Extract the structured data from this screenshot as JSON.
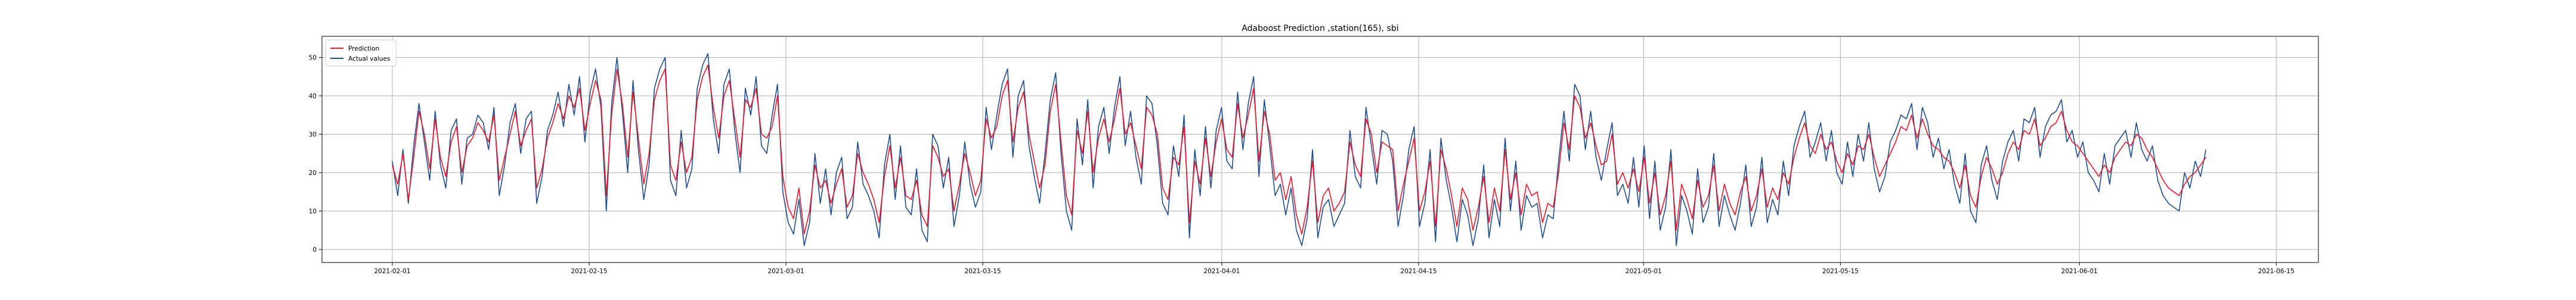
{
  "chart_data": {
    "type": "line",
    "title": "Adaboost Prediction ,station(165), sbi",
    "xlabel": "",
    "ylabel": "",
    "x_start": "2021-02-01",
    "x_end": "2021-06-10",
    "xlim": [
      "2021-01-27",
      "2021-06-18"
    ],
    "ylim": [
      -3.4,
      55.5
    ],
    "grid": true,
    "legend_position": "top-left",
    "x_ticks": [
      "2021-02-01",
      "2021-02-15",
      "2021-03-01",
      "2021-03-15",
      "2021-04-01",
      "2021-04-15",
      "2021-05-01",
      "2021-05-15",
      "2021-06-01",
      "2021-06-15"
    ],
    "y_ticks": [
      0,
      10,
      20,
      30,
      40,
      50
    ],
    "series": [
      {
        "name": "Prediction",
        "color": "#e8192c",
        "values": [
          22,
          17,
          25,
          13,
          24,
          36,
          30,
          21,
          34,
          24,
          19,
          28,
          32,
          20,
          27,
          29,
          33,
          31,
          28,
          35,
          18,
          24,
          30,
          36,
          27,
          31,
          34,
          16,
          21,
          29,
          33,
          38,
          34,
          40,
          37,
          42,
          31,
          38,
          44,
          39,
          14,
          35,
          47,
          38,
          24,
          41,
          29,
          17,
          25,
          39,
          44,
          47,
          22,
          18,
          28,
          20,
          24,
          39,
          45,
          48,
          37,
          29,
          40,
          44,
          34,
          24,
          39,
          37,
          42,
          30,
          29,
          32,
          40,
          19,
          11,
          8,
          16,
          4,
          10,
          22,
          16,
          18,
          12,
          17,
          21,
          11,
          14,
          25,
          20,
          17,
          13,
          7,
          19,
          27,
          16,
          24,
          14,
          13,
          18,
          9,
          6,
          27,
          24,
          19,
          21,
          10,
          17,
          25,
          20,
          14,
          18,
          34,
          29,
          32,
          40,
          44,
          28,
          37,
          41,
          30,
          23,
          16,
          22,
          36,
          43,
          28,
          14,
          9,
          31,
          25,
          36,
          20,
          29,
          34,
          28,
          34,
          42,
          30,
          33,
          27,
          21,
          37,
          35,
          30,
          16,
          13,
          24,
          22,
          32,
          7,
          23,
          17,
          29,
          19,
          28,
          34,
          26,
          24,
          38,
          29,
          35,
          42,
          23,
          36,
          30,
          18,
          20,
          13,
          19,
          9,
          4,
          11,
          23,
          7,
          14,
          16,
          10,
          12,
          15,
          28,
          22,
          19,
          34,
          30,
          20,
          28,
          27,
          26,
          10,
          17,
          23,
          29,
          10,
          15,
          23,
          6,
          26,
          21,
          14,
          6,
          16,
          13,
          5,
          11,
          19,
          7,
          16,
          10,
          26,
          13,
          20,
          9,
          17,
          14,
          15,
          7,
          12,
          11,
          20,
          33,
          26,
          40,
          37,
          29,
          33,
          27,
          22,
          23,
          30,
          17,
          20,
          16,
          21,
          15,
          24,
          12,
          20,
          9,
          14,
          23,
          5,
          17,
          13,
          8,
          18,
          11,
          14,
          22,
          10,
          17,
          12,
          9,
          15,
          19,
          10,
          14,
          21,
          11,
          16,
          13,
          20,
          17,
          24,
          29,
          33,
          27,
          25,
          30,
          26,
          28,
          23,
          20,
          25,
          22,
          27,
          26,
          30,
          24,
          19,
          22,
          25,
          28,
          32,
          31,
          35,
          29,
          34,
          30,
          27,
          26,
          24,
          23,
          20,
          16,
          22,
          14,
          11,
          19,
          24,
          21,
          17,
          20,
          25,
          28,
          26,
          31,
          30,
          34,
          27,
          29,
          32,
          33,
          36,
          31,
          28,
          27,
          25,
          23,
          21,
          19,
          22,
          20,
          24,
          26,
          28,
          27,
          30,
          29,
          26,
          24,
          21,
          18,
          16,
          15,
          14,
          17,
          19,
          20,
          22,
          24
        ]
      },
      {
        "name": "Actual values",
        "color": "#1f4e8c",
        "values": [
          23,
          14,
          26,
          12,
          27,
          38,
          28,
          18,
          36,
          22,
          16,
          31,
          34,
          17,
          29,
          30,
          35,
          33,
          26,
          37,
          14,
          22,
          33,
          38,
          25,
          34,
          36,
          12,
          19,
          31,
          35,
          41,
          32,
          43,
          35,
          45,
          28,
          41,
          47,
          37,
          10,
          38,
          50,
          36,
          20,
          44,
          26,
          13,
          22,
          42,
          47,
          50,
          18,
          14,
          31,
          16,
          21,
          42,
          48,
          51,
          34,
          25,
          43,
          47,
          31,
          20,
          42,
          35,
          45,
          27,
          25,
          35,
          43,
          15,
          7,
          4,
          13,
          1,
          7,
          25,
          12,
          21,
          9,
          20,
          24,
          8,
          11,
          28,
          17,
          14,
          10,
          3,
          22,
          30,
          13,
          27,
          11,
          9,
          21,
          5,
          2,
          30,
          27,
          16,
          24,
          6,
          14,
          28,
          17,
          11,
          15,
          37,
          26,
          35,
          43,
          47,
          24,
          40,
          44,
          27,
          19,
          12,
          25,
          39,
          46,
          25,
          10,
          5,
          34,
          22,
          39,
          16,
          32,
          37,
          25,
          37,
          45,
          27,
          36,
          24,
          17,
          40,
          38,
          27,
          12,
          9,
          27,
          19,
          35,
          3,
          26,
          14,
          32,
          16,
          31,
          37,
          23,
          21,
          41,
          26,
          38,
          45,
          19,
          39,
          27,
          14,
          17,
          9,
          16,
          5,
          1,
          8,
          26,
          3,
          11,
          13,
          6,
          9,
          12,
          31,
          19,
          16,
          37,
          27,
          17,
          31,
          30,
          23,
          6,
          14,
          26,
          32,
          6,
          12,
          26,
          2,
          29,
          18,
          11,
          2,
          13,
          9,
          1,
          8,
          22,
          3,
          13,
          6,
          29,
          10,
          23,
          5,
          14,
          11,
          12,
          3,
          9,
          8,
          23,
          36,
          23,
          43,
          40,
          26,
          36,
          24,
          18,
          26,
          33,
          14,
          17,
          12,
          24,
          11,
          27,
          8,
          23,
          5,
          11,
          26,
          1,
          14,
          10,
          4,
          21,
          7,
          11,
          25,
          6,
          14,
          9,
          5,
          12,
          22,
          6,
          11,
          24,
          7,
          13,
          9,
          23,
          14,
          27,
          32,
          36,
          24,
          28,
          33,
          23,
          31,
          20,
          17,
          28,
          19,
          30,
          23,
          33,
          21,
          15,
          19,
          28,
          31,
          35,
          34,
          38,
          26,
          37,
          33,
          24,
          29,
          21,
          26,
          17,
          12,
          25,
          10,
          7,
          22,
          27,
          18,
          13,
          23,
          28,
          31,
          23,
          34,
          33,
          37,
          24,
          32,
          35,
          36,
          39,
          28,
          31,
          24,
          28,
          20,
          18,
          15,
          25,
          17,
          27,
          29,
          31,
          24,
          33,
          26,
          23,
          27,
          18,
          14,
          12,
          11,
          10,
          20,
          16,
          23,
          19,
          26
        ]
      }
    ]
  }
}
